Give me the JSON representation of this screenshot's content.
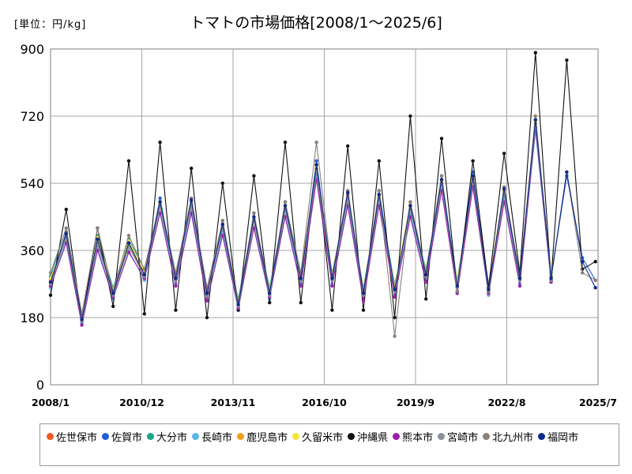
{
  "chart_data": {
    "type": "line",
    "title": "トマトの市場価格[2008/1～2025/6]",
    "unit_label": "[単位：円/kg]",
    "y_ticks": [
      "0",
      "180",
      "360",
      "540",
      "720",
      "900"
    ],
    "ylim": [
      0,
      900
    ],
    "x_ticks": [
      {
        "label": "2008/1",
        "date": "2008-01"
      },
      {
        "label": "2010/12",
        "date": "2010-12"
      },
      {
        "label": "2013/11",
        "date": "2013-11"
      },
      {
        "label": "2016/10",
        "date": "2016-10"
      },
      {
        "label": "2019/9",
        "date": "2019-09"
      },
      {
        "label": "2022/8",
        "date": "2022-08"
      },
      {
        "label": "2025/7",
        "date": "2025-07"
      }
    ],
    "grid": true,
    "legend_position": "bottom",
    "x": [
      "2008-01",
      "2008-07",
      "2009-01",
      "2009-07",
      "2010-01",
      "2010-07",
      "2011-01",
      "2011-07",
      "2012-01",
      "2012-07",
      "2013-01",
      "2013-07",
      "2014-01",
      "2014-07",
      "2015-01",
      "2015-07",
      "2016-01",
      "2016-07",
      "2017-01",
      "2017-07",
      "2018-01",
      "2018-07",
      "2019-01",
      "2019-07",
      "2020-01",
      "2020-07",
      "2021-01",
      "2021-07",
      "2022-01",
      "2022-07",
      "2023-01",
      "2023-07",
      "2024-01",
      "2024-07",
      "2025-01",
      "2025-06"
    ],
    "series": [
      {
        "name": "佐世保市",
        "color": "#ee5a24",
        "values": [
          280,
          400,
          180,
          380,
          250,
          370,
          300,
          480,
          290,
          480,
          250,
          420,
          220,
          440,
          250,
          470,
          290,
          580,
          290,
          510,
          250,
          510,
          260,
          480,
          300,
          550,
          270,
          560,
          260,
          520,
          290,
          700,
          290,
          null,
          null,
          null
        ]
      },
      {
        "name": "佐賀市",
        "color": "#1f5fd6",
        "values": [
          270,
          410,
          170,
          390,
          240,
          380,
          290,
          500,
          280,
          500,
          240,
          440,
          210,
          460,
          240,
          490,
          280,
          600,
          280,
          520,
          240,
          520,
          250,
          490,
          290,
          560,
          260,
          570,
          250,
          530,
          280,
          710,
          290,
          560,
          340,
          280
        ]
      },
      {
        "name": "大分市",
        "color": "#1aa58a",
        "values": [
          290,
          420,
          190,
          400,
          260,
          390,
          310,
          490,
          300,
          490,
          260,
          430,
          230,
          450,
          260,
          480,
          300,
          570,
          300,
          500,
          260,
          500,
          270,
          470,
          310,
          540,
          280,
          550,
          270,
          510,
          300,
          690,
          300,
          null,
          null,
          null
        ]
      },
      {
        "name": "長崎市",
        "color": "#5ab4e8",
        "values": [
          260,
          390,
          165,
          370,
          230,
          360,
          280,
          470,
          270,
          470,
          230,
          410,
          200,
          430,
          230,
          460,
          270,
          560,
          270,
          490,
          230,
          490,
          240,
          460,
          280,
          530,
          250,
          540,
          240,
          500,
          270,
          680,
          280,
          null,
          null,
          null
        ]
      },
      {
        "name": "鹿児島市",
        "color": "#f0a01e",
        "values": [
          275,
          405,
          175,
          385,
          245,
          375,
          295,
          485,
          285,
          485,
          245,
          425,
          215,
          445,
          245,
          475,
          285,
          575,
          285,
          505,
          245,
          505,
          255,
          475,
          295,
          545,
          265,
          555,
          255,
          520,
          285,
          720,
          285,
          null,
          null,
          null
        ]
      },
      {
        "name": "久留米市",
        "color": "#f4e23a",
        "values": [
          285,
          395,
          185,
          395,
          255,
          385,
          305,
          475,
          295,
          495,
          255,
          435,
          225,
          435,
          255,
          465,
          295,
          585,
          295,
          515,
          255,
          495,
          265,
          485,
          305,
          535,
          275,
          545,
          265,
          525,
          295,
          705,
          295,
          null,
          null,
          null
        ]
      },
      {
        "name": "沖縄県",
        "color": "#111111",
        "values": [
          240,
          470,
          170,
          420,
          210,
          600,
          190,
          650,
          200,
          580,
          180,
          540,
          200,
          560,
          220,
          650,
          220,
          590,
          200,
          640,
          200,
          600,
          180,
          720,
          230,
          660,
          250,
          600,
          260,
          620,
          300,
          890,
          280,
          870,
          310,
          330
        ]
      },
      {
        "name": "熊本市",
        "color": "#9b1fa8",
        "values": [
          265,
          380,
          160,
          360,
          235,
          355,
          285,
          460,
          265,
          460,
          225,
          400,
          205,
          420,
          235,
          450,
          265,
          550,
          265,
          480,
          225,
          480,
          235,
          450,
          275,
          520,
          245,
          530,
          245,
          490,
          265,
          690,
          275,
          null,
          null,
          null
        ]
      },
      {
        "name": "宮崎市",
        "color": "#8a9199",
        "values": [
          270,
          395,
          170,
          380,
          240,
          370,
          290,
          480,
          280,
          480,
          240,
          420,
          210,
          440,
          240,
          470,
          280,
          570,
          280,
          500,
          240,
          500,
          250,
          470,
          290,
          540,
          260,
          550,
          250,
          510,
          280,
          700,
          280,
          null,
          null,
          null
        ]
      },
      {
        "name": "北九州市",
        "color": "#8c7f7a",
        "values": [
          300,
          420,
          190,
          420,
          250,
          400,
          310,
          490,
          300,
          500,
          260,
          440,
          220,
          460,
          250,
          490,
          300,
          650,
          290,
          520,
          250,
          520,
          130,
          490,
          300,
          560,
          250,
          560,
          250,
          530,
          290,
          720,
          290,
          570,
          300,
          280
        ]
      },
      {
        "name": "福岡市",
        "color": "#0a2a8a",
        "values": [
          275,
          405,
          175,
          390,
          245,
          380,
          295,
          490,
          285,
          495,
          245,
          430,
          215,
          450,
          245,
          480,
          285,
          590,
          285,
          515,
          245,
          510,
          255,
          480,
          295,
          550,
          265,
          560,
          255,
          525,
          285,
          710,
          285,
          570,
          330,
          260
        ]
      }
    ]
  }
}
